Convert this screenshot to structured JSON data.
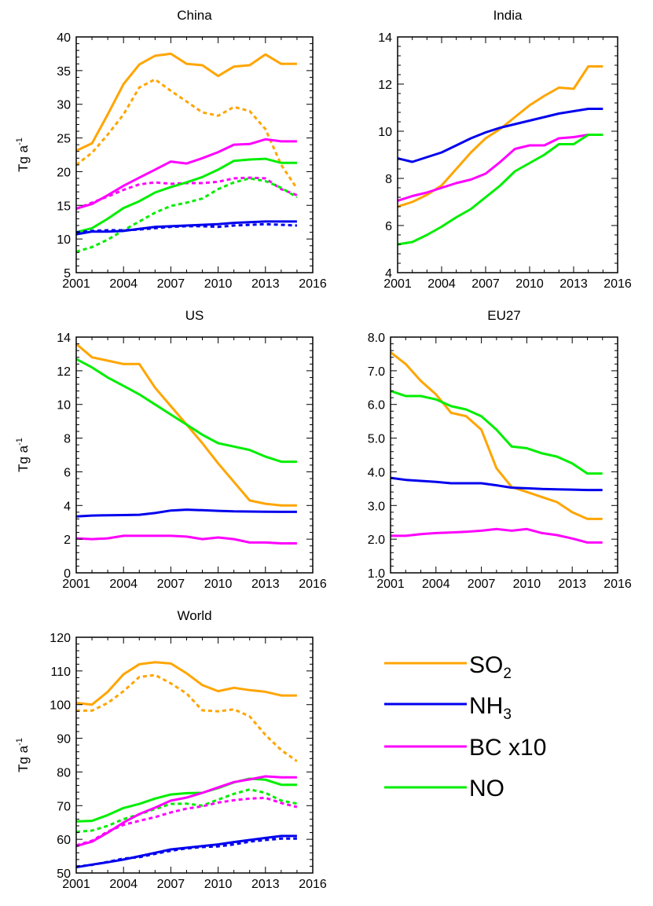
{
  "colors": {
    "SO2": "#ffa500",
    "NH3": "#0000ee",
    "BC": "#ff00ff",
    "NO": "#00ee00"
  },
  "legend": {
    "so2": {
      "base": "SO",
      "sub": "2"
    },
    "nh3": {
      "base": "NH",
      "sub": "3"
    },
    "bc": "BC x10",
    "no": "NO"
  },
  "chart_data": [
    {
      "type": "line",
      "title": "China",
      "ylabel": {
        "base": "Tg a",
        "sup": "-1"
      },
      "xlim": [
        2001,
        2016
      ],
      "xticks": [
        2001,
        2004,
        2007,
        2010,
        2013,
        2016
      ],
      "ylim": [
        5,
        40
      ],
      "yticks": [
        5,
        10,
        15,
        20,
        25,
        30,
        35,
        40
      ],
      "ytick_labels": [
        "5",
        "10",
        "15",
        "20",
        "25",
        "30",
        "35",
        "40"
      ],
      "x": [
        2001,
        2002,
        2003,
        2004,
        2005,
        2006,
        2007,
        2008,
        2009,
        2010,
        2011,
        2012,
        2013,
        2014,
        2015
      ],
      "series": [
        {
          "key": "SO2",
          "style": "solid",
          "values": [
            23.1,
            24.2,
            28.5,
            33.0,
            35.9,
            37.2,
            37.5,
            36.0,
            35.8,
            34.2,
            35.6,
            35.8,
            37.4,
            36.0,
            36.0
          ]
        },
        {
          "key": "SO2",
          "style": "dashed",
          "values": [
            21.0,
            22.8,
            25.5,
            28.5,
            32.5,
            33.7,
            32.0,
            30.4,
            28.8,
            28.3,
            29.6,
            29.0,
            26.3,
            21.0,
            17.5
          ]
        },
        {
          "key": "BC",
          "style": "solid",
          "values": [
            14.5,
            15.2,
            16.5,
            17.9,
            19.1,
            20.3,
            21.5,
            21.2,
            22.0,
            22.9,
            24.0,
            24.1,
            24.8,
            24.5,
            24.5
          ]
        },
        {
          "key": "BC",
          "style": "dashed",
          "values": [
            14.5,
            15.4,
            16.3,
            17.3,
            18.1,
            18.4,
            18.2,
            18.3,
            18.3,
            18.5,
            19.0,
            19.1,
            19.0,
            17.4,
            16.5
          ]
        },
        {
          "key": "NO",
          "style": "solid",
          "values": [
            11.0,
            11.6,
            13.0,
            14.6,
            15.6,
            16.9,
            17.7,
            18.4,
            19.2,
            20.3,
            21.6,
            21.8,
            21.9,
            21.3,
            21.3
          ]
        },
        {
          "key": "NO",
          "style": "dashed",
          "values": [
            8.1,
            8.8,
            9.9,
            11.3,
            12.6,
            13.9,
            14.9,
            15.4,
            16.0,
            17.4,
            18.4,
            19.0,
            18.6,
            17.6,
            16.2
          ]
        },
        {
          "key": "NH3",
          "style": "solid",
          "values": [
            10.7,
            11.1,
            11.1,
            11.2,
            11.5,
            11.8,
            11.9,
            12.0,
            12.1,
            12.2,
            12.4,
            12.5,
            12.6,
            12.6,
            12.6
          ]
        },
        {
          "key": "NH3",
          "style": "dashed",
          "values": [
            11.0,
            11.2,
            11.3,
            11.3,
            11.4,
            11.6,
            11.8,
            11.9,
            11.9,
            11.8,
            12.0,
            12.1,
            12.2,
            12.1,
            12.0
          ]
        }
      ]
    },
    {
      "type": "line",
      "title": "India",
      "ylabel": null,
      "xlim": [
        2001,
        2016
      ],
      "xticks": [
        2001,
        2004,
        2007,
        2010,
        2013,
        2016
      ],
      "ylim": [
        4,
        14
      ],
      "yticks": [
        4,
        6,
        8,
        10,
        12,
        14
      ],
      "ytick_labels": [
        "4",
        "6",
        "8",
        "10",
        "12",
        "14"
      ],
      "x": [
        2001,
        2002,
        2003,
        2004,
        2005,
        2006,
        2007,
        2008,
        2009,
        2010,
        2011,
        2012,
        2013,
        2014,
        2015
      ],
      "series": [
        {
          "key": "SO2",
          "style": "solid",
          "values": [
            6.8,
            7.0,
            7.3,
            7.7,
            8.4,
            9.1,
            9.7,
            10.1,
            10.6,
            11.1,
            11.5,
            11.85,
            11.8,
            12.75,
            12.75
          ]
        },
        {
          "key": "NH3",
          "style": "solid",
          "values": [
            8.85,
            8.7,
            8.9,
            9.1,
            9.4,
            9.7,
            9.95,
            10.15,
            10.3,
            10.45,
            10.6,
            10.75,
            10.85,
            10.95,
            10.95
          ]
        },
        {
          "key": "BC",
          "style": "solid",
          "values": [
            7.05,
            7.25,
            7.4,
            7.6,
            7.8,
            7.95,
            8.2,
            8.7,
            9.25,
            9.4,
            9.4,
            9.7,
            9.75,
            9.85,
            9.85
          ]
        },
        {
          "key": "NO",
          "style": "solid",
          "values": [
            5.2,
            5.3,
            5.6,
            5.95,
            6.35,
            6.7,
            7.2,
            7.7,
            8.3,
            8.65,
            9.0,
            9.45,
            9.45,
            9.85,
            9.85
          ]
        }
      ]
    },
    {
      "type": "line",
      "title": "US",
      "ylabel": {
        "base": "Tg a",
        "sup": "-1"
      },
      "xlim": [
        2001,
        2016
      ],
      "xticks": [
        2001,
        2004,
        2007,
        2010,
        2013,
        2016
      ],
      "ylim": [
        0,
        14
      ],
      "yticks": [
        0,
        2,
        4,
        6,
        8,
        10,
        12,
        14
      ],
      "ytick_labels": [
        "0",
        "2",
        "4",
        "6",
        "8",
        "10",
        "12",
        "14"
      ],
      "x": [
        2001,
        2002,
        2003,
        2004,
        2005,
        2006,
        2007,
        2008,
        2009,
        2010,
        2011,
        2012,
        2013,
        2014,
        2015
      ],
      "series": [
        {
          "key": "SO2",
          "style": "solid",
          "values": [
            13.6,
            12.8,
            12.6,
            12.4,
            12.4,
            11.0,
            9.9,
            8.8,
            7.7,
            6.5,
            5.4,
            4.3,
            4.1,
            4.0,
            4.0
          ]
        },
        {
          "key": "NO",
          "style": "solid",
          "values": [
            12.7,
            12.2,
            11.6,
            11.1,
            10.6,
            10.0,
            9.4,
            8.8,
            8.2,
            7.7,
            7.5,
            7.3,
            6.9,
            6.6,
            6.6
          ]
        },
        {
          "key": "NH3",
          "style": "solid",
          "values": [
            3.35,
            3.4,
            3.42,
            3.43,
            3.45,
            3.55,
            3.7,
            3.75,
            3.72,
            3.68,
            3.65,
            3.64,
            3.63,
            3.62,
            3.62
          ]
        },
        {
          "key": "BC",
          "style": "solid",
          "values": [
            2.05,
            2.0,
            2.05,
            2.2,
            2.2,
            2.2,
            2.2,
            2.15,
            2.0,
            2.1,
            2.0,
            1.8,
            1.8,
            1.75,
            1.75
          ]
        }
      ]
    },
    {
      "type": "line",
      "title": "EU27",
      "ylabel": null,
      "xlim": [
        2001,
        2016
      ],
      "xticks": [
        2001,
        2004,
        2007,
        2010,
        2013,
        2016
      ],
      "ylim": [
        1.0,
        8.0
      ],
      "yticks": [
        1,
        2,
        3,
        4,
        5,
        6,
        7,
        8
      ],
      "ytick_labels": [
        "1.0",
        "2.0",
        "3.0",
        "4.0",
        "5.0",
        "6.0",
        "7.0",
        "8.0"
      ],
      "x": [
        2001,
        2002,
        2003,
        2004,
        2005,
        2006,
        2007,
        2008,
        2009,
        2010,
        2011,
        2012,
        2013,
        2014,
        2015
      ],
      "series": [
        {
          "key": "SO2",
          "style": "solid",
          "values": [
            7.55,
            7.2,
            6.7,
            6.3,
            5.75,
            5.65,
            5.25,
            4.1,
            3.55,
            3.4,
            3.25,
            3.1,
            2.8,
            2.6,
            2.6
          ]
        },
        {
          "key": "NO",
          "style": "solid",
          "values": [
            6.4,
            6.25,
            6.25,
            6.15,
            5.95,
            5.85,
            5.65,
            5.25,
            4.75,
            4.7,
            4.55,
            4.45,
            4.25,
            3.95,
            3.95
          ]
        },
        {
          "key": "NH3",
          "style": "solid",
          "values": [
            3.82,
            3.76,
            3.73,
            3.7,
            3.66,
            3.66,
            3.66,
            3.6,
            3.53,
            3.51,
            3.49,
            3.48,
            3.47,
            3.46,
            3.46
          ]
        },
        {
          "key": "BC",
          "style": "solid",
          "values": [
            2.1,
            2.1,
            2.15,
            2.18,
            2.2,
            2.22,
            2.25,
            2.3,
            2.25,
            2.3,
            2.18,
            2.12,
            2.02,
            1.9,
            1.9
          ]
        }
      ]
    },
    {
      "type": "line",
      "title": "World",
      "ylabel": {
        "base": "Tg a",
        "sup": "-1"
      },
      "xlim": [
        2001,
        2016
      ],
      "xticks": [
        2001,
        2004,
        2007,
        2010,
        2013,
        2016
      ],
      "ylim": [
        50,
        120
      ],
      "yticks": [
        50,
        60,
        70,
        80,
        90,
        100,
        110,
        120
      ],
      "ytick_labels": [
        "50",
        "60",
        "70",
        "80",
        "90",
        "100",
        "110",
        "120"
      ],
      "x": [
        2001,
        2002,
        2003,
        2004,
        2005,
        2006,
        2007,
        2008,
        2009,
        2010,
        2011,
        2012,
        2013,
        2014,
        2015
      ],
      "series": [
        {
          "key": "SO2",
          "style": "solid",
          "values": [
            100.5,
            100.0,
            103.8,
            109.0,
            112.0,
            112.6,
            112.2,
            109.3,
            105.8,
            104.0,
            105.0,
            104.3,
            103.8,
            102.7,
            102.7
          ]
        },
        {
          "key": "SO2",
          "style": "dashed",
          "values": [
            98.2,
            98.2,
            100.5,
            104.0,
            108.2,
            108.8,
            106.3,
            103.3,
            98.3,
            98.0,
            98.6,
            96.5,
            91.0,
            86.5,
            83.2
          ]
        },
        {
          "key": "NO",
          "style": "solid",
          "values": [
            65.3,
            65.5,
            67.2,
            69.3,
            70.5,
            72.1,
            73.3,
            73.7,
            73.8,
            75.2,
            76.9,
            78.0,
            77.7,
            76.2,
            76.2
          ]
        },
        {
          "key": "NO",
          "style": "dashed",
          "values": [
            62.2,
            62.6,
            64.0,
            66.0,
            67.4,
            69.0,
            70.5,
            70.6,
            70.0,
            71.8,
            73.5,
            74.8,
            73.8,
            71.5,
            70.6
          ]
        },
        {
          "key": "BC",
          "style": "solid",
          "values": [
            58.0,
            59.3,
            62.0,
            65.0,
            67.5,
            69.4,
            71.5,
            72.4,
            73.8,
            75.4,
            77.0,
            77.8,
            78.7,
            78.4,
            78.4
          ]
        },
        {
          "key": "BC",
          "style": "dashed",
          "values": [
            58.2,
            59.6,
            62.3,
            64.3,
            65.5,
            66.6,
            68.0,
            69.1,
            69.8,
            70.9,
            71.6,
            72.1,
            72.3,
            70.8,
            69.6
          ]
        },
        {
          "key": "NH3",
          "style": "solid",
          "values": [
            51.7,
            52.5,
            53.2,
            54.0,
            55.0,
            56.0,
            57.0,
            57.5,
            58.0,
            58.5,
            59.2,
            59.8,
            60.4,
            61.0,
            61.0
          ]
        },
        {
          "key": "NH3",
          "style": "dashed",
          "values": [
            51.9,
            52.4,
            53.3,
            54.3,
            54.7,
            55.7,
            56.6,
            57.3,
            57.7,
            57.9,
            58.5,
            59.3,
            59.8,
            60.2,
            60.2
          ]
        }
      ]
    }
  ]
}
